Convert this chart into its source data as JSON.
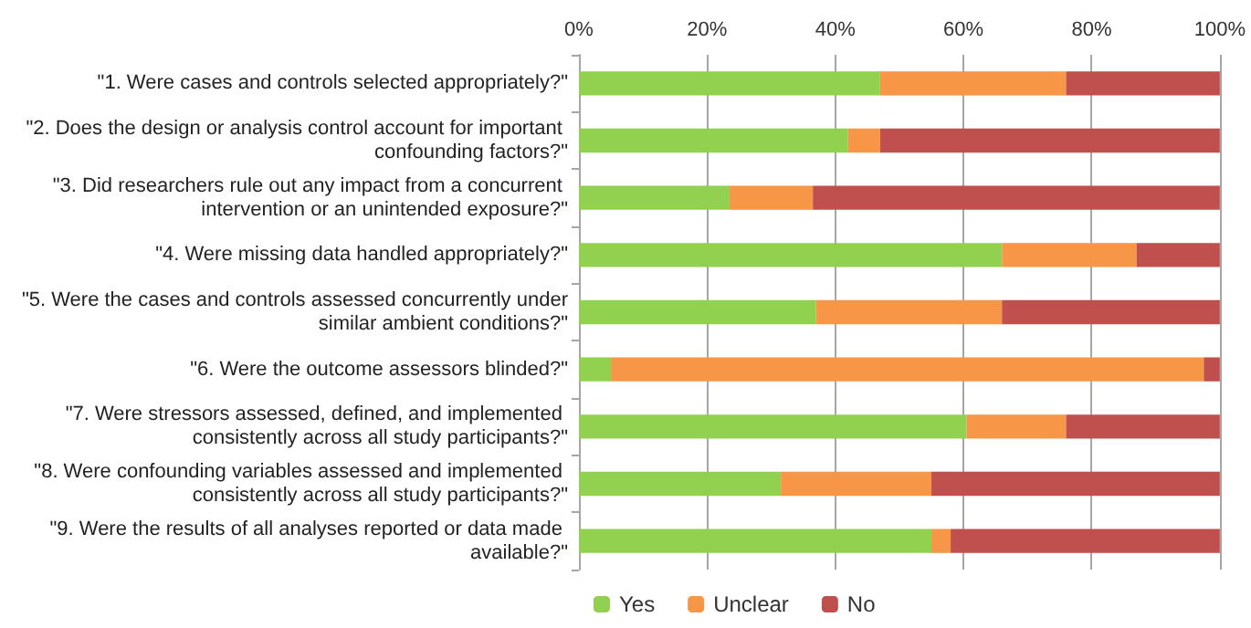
{
  "chart_data": {
    "type": "bar",
    "orientation": "horizontal",
    "stacked": true,
    "categories": [
      "\"1. Were cases and controls selected appropriately?\"",
      "\"2. Does the design or analysis control account for important confounding factors?\"",
      "\"3. Did researchers rule out any impact from a concurrent intervention or an unintended exposure?\"",
      "\"4. Were missing data handled appropriately?\"",
      "\"5. Were the cases and controls assessed concurrently under similar ambient conditions?\"",
      "\"6. Were the outcome assessors blinded?\"",
      "\"7. Were stressors assessed, defined, and implemented consistently across all study participants?\"",
      "\"8. Were confounding variables assessed and implemented consistently across all study participants?\"",
      "\"9. Were the results of all analyses reported or data made available?\""
    ],
    "series": [
      {
        "name": "Yes",
        "color": "#92d050",
        "values": [
          47,
          42,
          23.5,
          66,
          37,
          5,
          60.5,
          31.5,
          55
        ]
      },
      {
        "name": "Unclear",
        "color": "#f79646",
        "values": [
          29,
          5,
          13,
          21,
          29,
          92.5,
          15.5,
          23.5,
          3
        ]
      },
      {
        "name": "No",
        "color": "#c0504d",
        "values": [
          24,
          53,
          63.5,
          13,
          34,
          2.5,
          24,
          45,
          42
        ]
      }
    ],
    "xlim": [
      0,
      100
    ],
    "xticks": [
      {
        "value": 0,
        "label": "0%"
      },
      {
        "value": 20,
        "label": "20%"
      },
      {
        "value": 40,
        "label": "40%"
      },
      {
        "value": 60,
        "label": "60%"
      },
      {
        "value": 80,
        "label": "80%"
      },
      {
        "value": 100,
        "label": "100%"
      }
    ],
    "grid": "x",
    "legend": "bottom"
  }
}
